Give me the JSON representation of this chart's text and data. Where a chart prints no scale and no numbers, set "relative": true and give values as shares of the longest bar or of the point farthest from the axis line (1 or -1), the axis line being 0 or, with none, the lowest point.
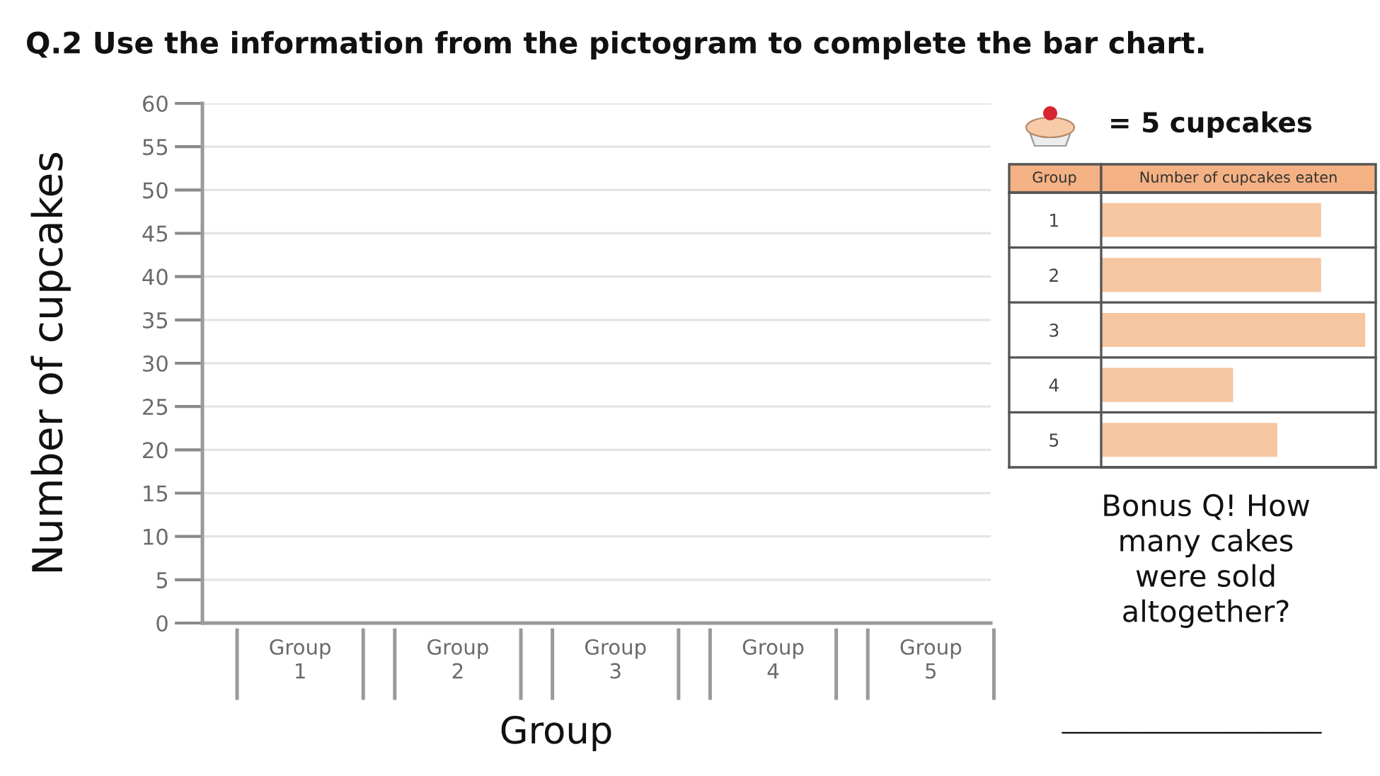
{
  "chart_data": [
    {
      "type": "bar",
      "title": "Q.2 Use the information from the pictogram to complete the bar chart.",
      "xlabel": "Group",
      "ylabel": "Number of cupcakes",
      "categories": [
        "Group\n1",
        "Group\n2",
        "Group\n3",
        "Group\n4",
        "Group\n5"
      ],
      "values": [
        null,
        null,
        null,
        null,
        null
      ],
      "ylim": [
        0,
        60
      ],
      "yticks": [
        0,
        5,
        10,
        15,
        20,
        25,
        30,
        35,
        40,
        45,
        50,
        55,
        60
      ],
      "grid": "y"
    },
    {
      "type": "bar",
      "orientation": "horizontal",
      "relative": true,
      "xlabel": "Number of cupcakes eaten",
      "ylabel": "Group",
      "categories": [
        "1",
        "2",
        "3",
        "4",
        "5"
      ],
      "values": [
        0.833,
        0.833,
        1,
        0.5,
        0.667
      ],
      "color": "#f6c6a0",
      "tick_labels": "y",
      "annotations": [
        "= 5 cupcakes",
        "Bonus Q! How\nmany cakes\nwere sold\naltogether?",
        "______________________"
      ]
    }
  ]
}
